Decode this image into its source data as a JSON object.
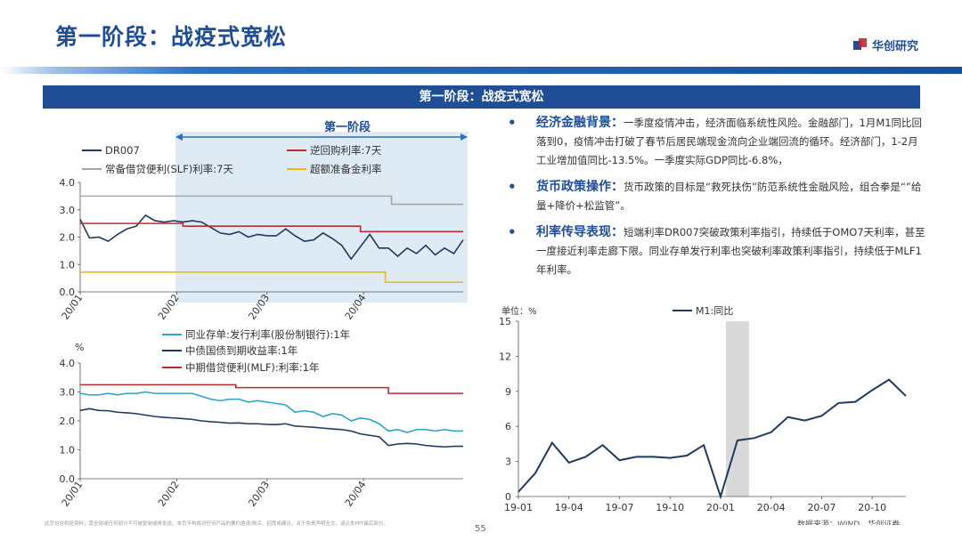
{
  "slide_title": "第一阶段：战疫式宽松",
  "logo_text": "华创研究",
  "band_title": "第一阶段：战疫式宽松",
  "phase_label": "第一阶段",
  "bullets": [
    {
      "heading": "经济金融背景：",
      "text": "一季度疫情冲击，经济面临系统性风险。金融部门，1月M1同比回落到0，疫情冲击打破了春节后居民端现金流向企业端回流的循环。经济部门，1-2月工业增加值同比-13.5%。一季度实际GDP同比-6.8%，"
    },
    {
      "heading": "货币政策操作：",
      "text": "货币政策的目标是“救死扶伤”防范系统性金融风险，组合拳是“”给量+降价+松监管”。"
    },
    {
      "heading": "利率传导表现：",
      "text": "短端利率DR007突破政策利率指引，持续低于OMO7天利率，甚至一度接近利率走廊下限。同业存单发行利率也突破利率政策利率指引，持续低于MLF1年利率。"
    }
  ],
  "footnote": "此页包含机密资料，其全部或任何部分不可被复制或再发送。本页不构成对任何产品的要约邀请/购买、招揽或建议。关于免责声明全文，请见本PPT最后部分。",
  "page_number": "55",
  "colors": {
    "brand": "#1f4e96",
    "dark_line": "#1f3a5f",
    "red": "#c0282f",
    "gray": "#a6a6a6",
    "gold": "#f5b800",
    "cyan": "#2aa3cc",
    "highlight": "#deebf5",
    "recession_bar": "#d9d9d9"
  },
  "chart_data": [
    {
      "type": "line",
      "title": "",
      "x_tick_labels": [
        "20/01",
        "20/02",
        "20/03",
        "20/04"
      ],
      "y_tick_labels": [
        "0.0",
        "1.0",
        "2.0",
        "3.0",
        "4.0"
      ],
      "ylim": [
        0,
        4
      ],
      "grid": false,
      "legend_position": "top",
      "x_days": [
        0,
        3,
        6,
        9,
        12,
        15,
        18,
        21,
        24,
        27,
        30,
        33,
        36,
        39,
        42,
        45,
        48,
        51,
        54,
        57,
        60,
        63,
        66,
        69,
        72,
        75,
        78,
        81,
        84,
        87,
        90,
        93,
        96,
        99,
        102,
        105,
        108,
        111,
        114,
        117,
        120,
        123
      ],
      "series": [
        {
          "name": "DR007",
          "values": [
            2.65,
            1.97,
            2.0,
            1.85,
            2.1,
            2.3,
            2.4,
            2.8,
            2.6,
            2.55,
            2.6,
            2.55,
            2.6,
            2.55,
            2.35,
            2.15,
            2.1,
            2.2,
            2.0,
            2.1,
            2.05,
            2.05,
            2.3,
            2.05,
            1.85,
            1.9,
            2.15,
            1.95,
            1.7,
            1.2,
            1.65,
            2.1,
            1.6,
            1.6,
            1.3,
            1.6,
            1.4,
            1.7,
            1.35,
            1.6,
            1.4,
            1.9
          ]
        },
        {
          "name": "逆回购利率:7天",
          "steps": [
            [
              0,
              2.5
            ],
            [
              33,
              2.4
            ],
            [
              90,
              2.2
            ],
            [
              123,
              2.2
            ]
          ]
        },
        {
          "name": "常备借贷便利(SLF)利率:7天",
          "steps": [
            [
              0,
              3.5
            ],
            [
              100,
              3.2
            ],
            [
              123,
              3.2
            ]
          ]
        },
        {
          "name": "超额准备金利率",
          "steps": [
            [
              0,
              0.72
            ],
            [
              98,
              0.35
            ],
            [
              123,
              0.35
            ]
          ]
        }
      ]
    },
    {
      "type": "line",
      "title": "",
      "ylabel": "%",
      "x_tick_labels": [
        "20/01",
        "20/02",
        "20/03",
        "20/04"
      ],
      "y_tick_labels": [
        "0.0",
        "1.0",
        "2.0",
        "3.0",
        "4.0"
      ],
      "ylim": [
        0,
        4
      ],
      "grid": false,
      "legend_position": "top",
      "x_days": [
        0,
        3,
        6,
        9,
        12,
        15,
        18,
        21,
        24,
        27,
        30,
        33,
        36,
        39,
        42,
        45,
        48,
        51,
        54,
        57,
        60,
        63,
        66,
        69,
        72,
        75,
        78,
        81,
        84,
        87,
        90,
        93,
        96,
        99,
        102,
        105,
        108,
        111,
        114,
        117,
        120,
        123
      ],
      "series": [
        {
          "name": "同业存单:发行利率(股份制银行):1年",
          "values": [
            2.95,
            2.9,
            2.9,
            2.95,
            2.9,
            2.95,
            2.95,
            3.0,
            2.95,
            2.95,
            2.95,
            2.95,
            2.95,
            2.85,
            2.75,
            2.7,
            2.75,
            2.75,
            2.65,
            2.7,
            2.65,
            2.6,
            2.55,
            2.3,
            2.35,
            2.3,
            2.15,
            2.25,
            2.2,
            2.0,
            2.1,
            2.05,
            1.9,
            1.65,
            1.7,
            1.6,
            1.7,
            1.7,
            1.65,
            1.7,
            1.65,
            1.65
          ]
        },
        {
          "name": "中债国债到期收益率:1年",
          "values": [
            2.36,
            2.42,
            2.36,
            2.35,
            2.3,
            2.28,
            2.25,
            2.2,
            2.15,
            2.12,
            2.1,
            2.08,
            2.05,
            2.0,
            1.97,
            1.95,
            1.92,
            1.93,
            1.9,
            1.9,
            1.88,
            1.87,
            1.9,
            1.82,
            1.8,
            1.78,
            1.75,
            1.72,
            1.7,
            1.65,
            1.55,
            1.5,
            1.45,
            1.15,
            1.2,
            1.22,
            1.2,
            1.15,
            1.12,
            1.1,
            1.12,
            1.12
          ]
        },
        {
          "name": "中期借贷便利(MLF):利率:1年",
          "steps": [
            [
              0,
              3.25
            ],
            [
              33,
              3.25
            ],
            [
              50,
              3.15
            ],
            [
              99,
              2.95
            ],
            [
              123,
              2.95
            ]
          ]
        }
      ]
    },
    {
      "type": "line",
      "title": "",
      "ylabel": "单位：%",
      "ylim": [
        0,
        15
      ],
      "y_tick_labels": [
        "0",
        "3",
        "6",
        "9",
        "12",
        "15"
      ],
      "x_tick_labels": [
        "19-01",
        "19-04",
        "19-07",
        "19-10",
        "20-01",
        "20-04",
        "20-07",
        "20-10"
      ],
      "grid": false,
      "legend_position": "top",
      "shaded_months": [
        "20-02"
      ],
      "source": "数据来源：WIND，华创证券",
      "categories": [
        "19-01",
        "19-02",
        "19-03",
        "19-04",
        "19-05",
        "19-06",
        "19-07",
        "19-08",
        "19-09",
        "19-10",
        "19-11",
        "19-12",
        "20-01",
        "20-02",
        "20-03",
        "20-04",
        "20-05",
        "20-06",
        "20-07",
        "20-08",
        "20-09",
        "20-10",
        "20-11",
        "20-12"
      ],
      "series": [
        {
          "name": "M1:同比",
          "values": [
            0.4,
            2.0,
            4.6,
            2.9,
            3.4,
            4.4,
            3.1,
            3.4,
            3.4,
            3.3,
            3.5,
            4.4,
            0.0,
            4.8,
            5.0,
            5.5,
            6.8,
            6.5,
            6.9,
            8.0,
            8.1,
            9.1,
            10.0,
            8.6
          ]
        }
      ]
    }
  ]
}
